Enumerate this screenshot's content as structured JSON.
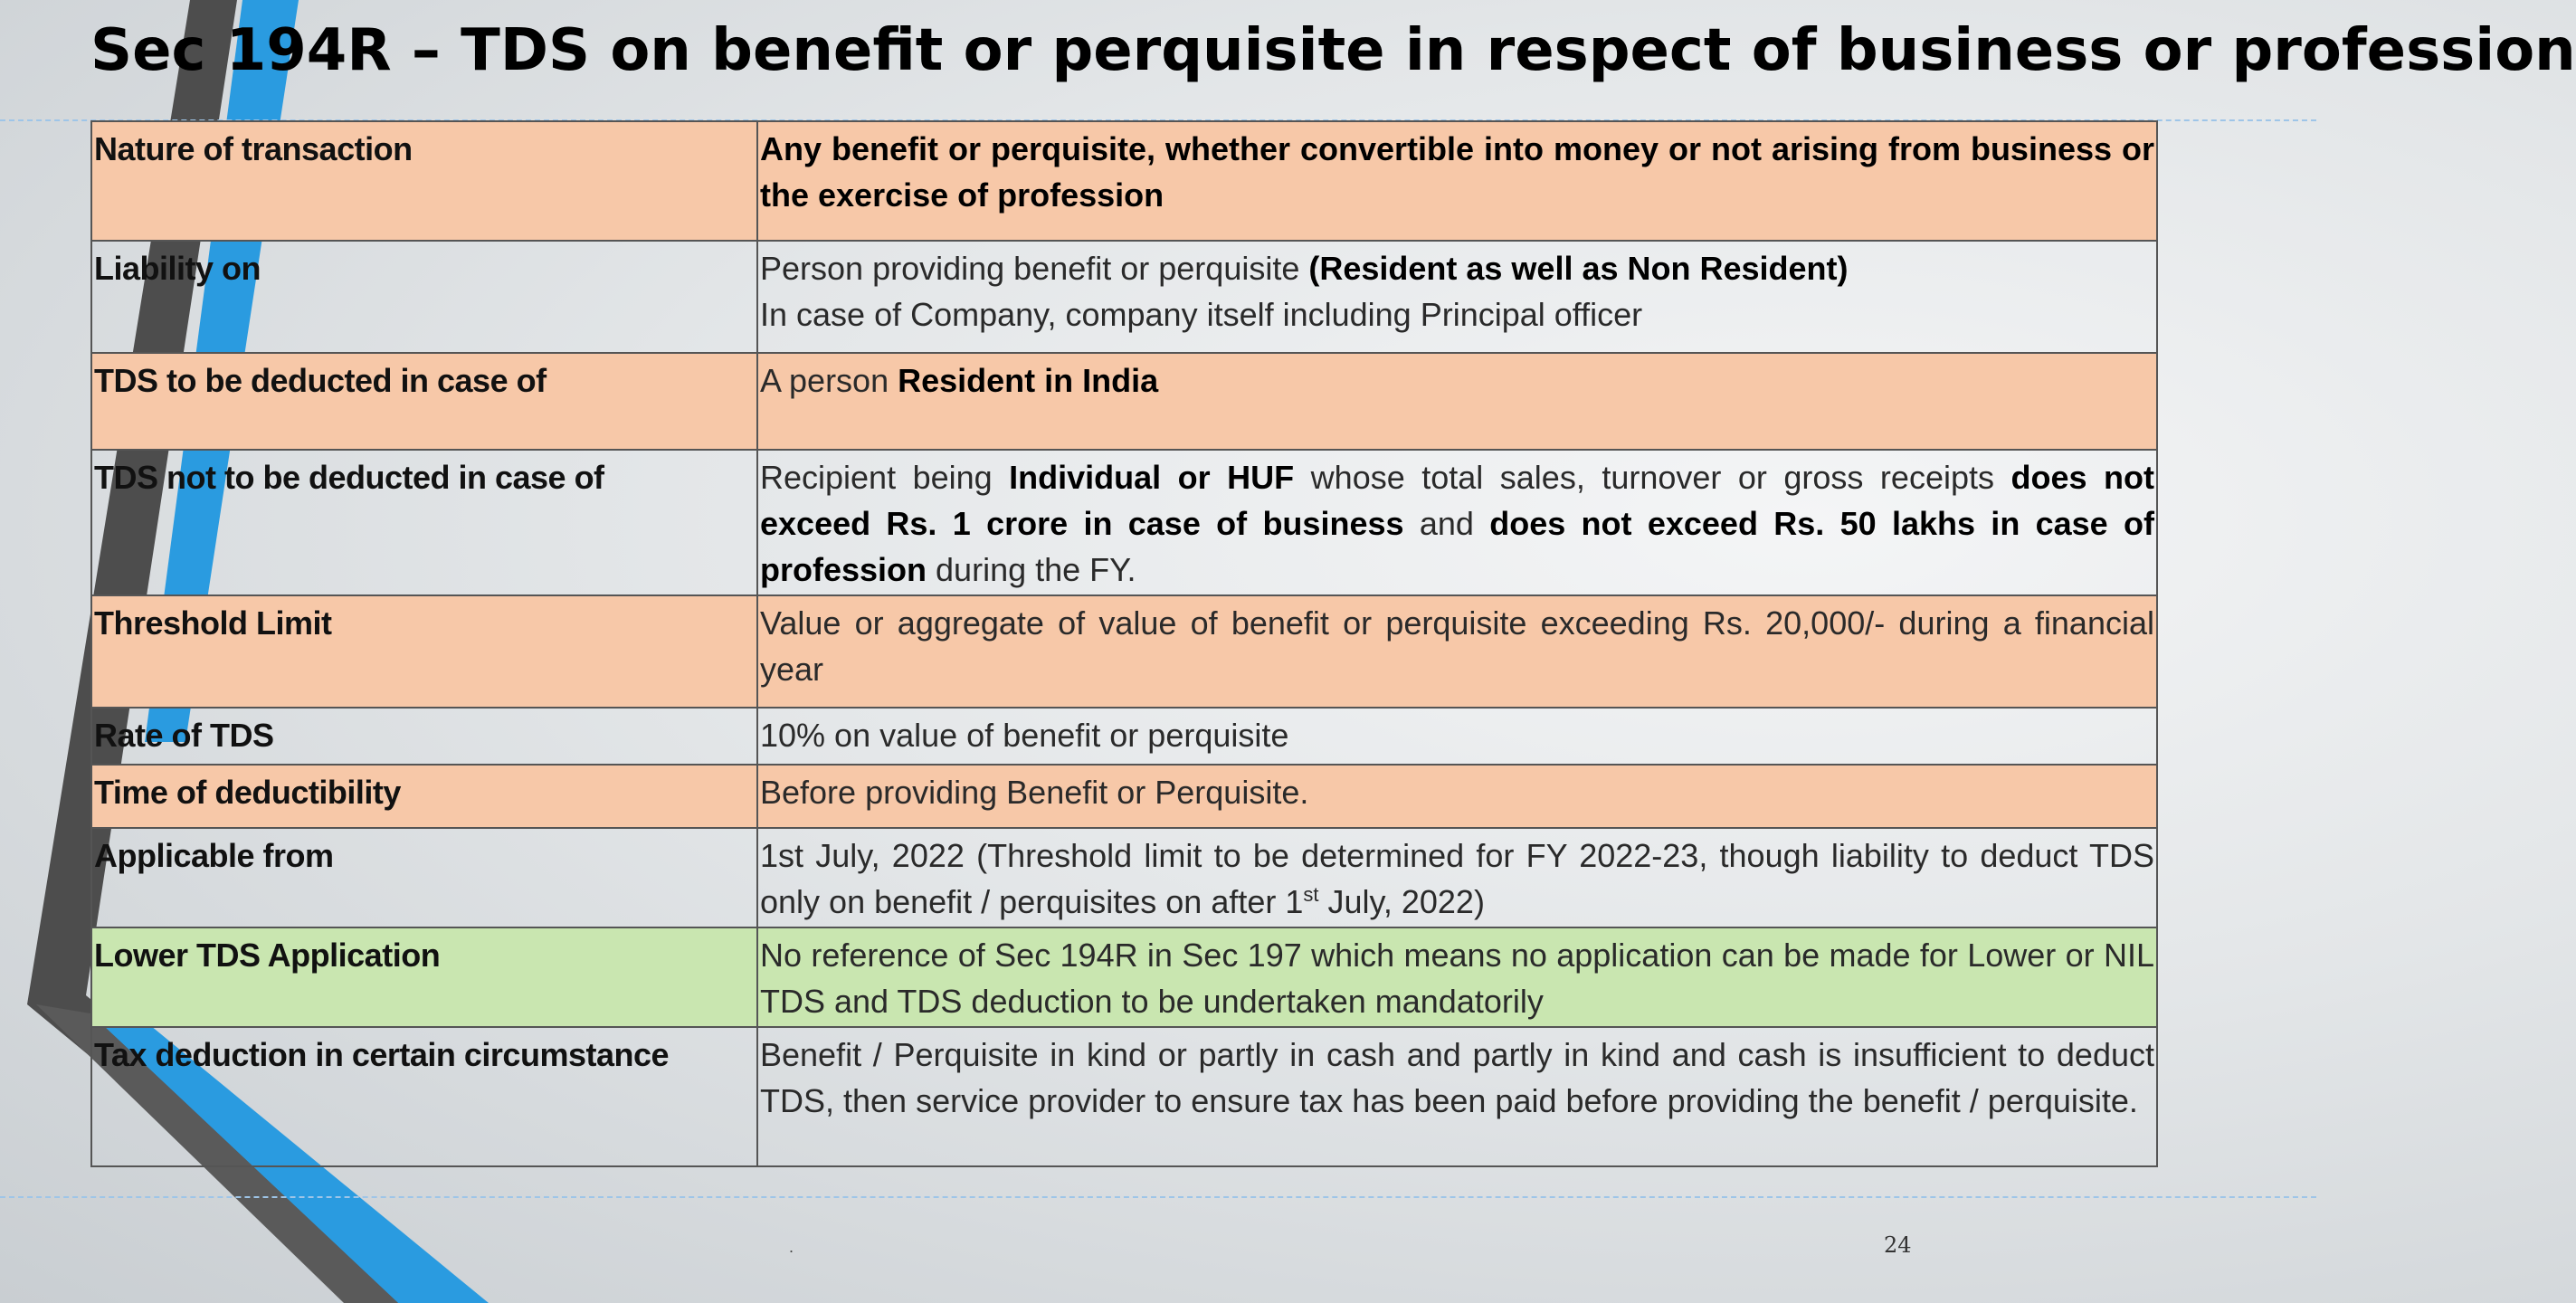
{
  "slide": {
    "title": "Sec 194R – TDS on benefit or perquisite in respect of business or profession",
    "page_number": "24",
    "footer_dot": "."
  },
  "rows": [
    {
      "label": "Nature of transaction",
      "value": [
        "Any benefit or perquisite, whether convertible into money or not arising from business or the exercise of profession"
      ]
    },
    {
      "label": "Liability on",
      "line1": [
        "Person providing benefit or perquisite ",
        "(Resident as well as Non Resident)"
      ],
      "line2": "In case of Company, company itself including Principal officer"
    },
    {
      "label": "TDS to be deducted in case of",
      "value": [
        "A person ",
        "Resident in India"
      ]
    },
    {
      "label": "TDS not to be deducted in case of",
      "value": [
        "Recipient being ",
        "Individual or HUF",
        " whose total sales, turnover or gross receipts ",
        "does not exceed Rs. 1 crore in case of business",
        " and ",
        "does not exceed Rs. 50 lakhs in case of profession",
        " during the FY."
      ]
    },
    {
      "label": "Threshold Limit",
      "value": [
        "Value or aggregate of value of benefit or perquisite exceeding Rs. 20,000/- during a financial year"
      ]
    },
    {
      "label": "Rate of TDS",
      "value": [
        "10% on value of benefit or perquisite"
      ]
    },
    {
      "label": "Time of deductibility",
      "value": [
        "Before providing Benefit or Perquisite."
      ]
    },
    {
      "label": "Applicable from",
      "value": [
        "1st July, 2022 (Threshold limit to be determined for FY 2022-23, though liability to deduct TDS only on benefit / perquisites on after 1",
        "st",
        " July, 2022)"
      ]
    },
    {
      "label": "Lower TDS Application",
      "value": [
        "No reference of Sec 194R in Sec 197 which means no application can be made for Lower or NIL TDS and TDS deduction to be undertaken mandatorily"
      ]
    },
    {
      "label": "Tax deduction in certain circumstance",
      "value": [
        "Benefit / Perquisite in kind or partly in cash and partly in kind and cash is insufficient to deduct TDS, then service provider to ensure tax has been paid before providing the benefit / perquisite."
      ]
    }
  ],
  "colors": {
    "peach_row": "#f7c8a8",
    "green_row": "#c9e6b0",
    "accent_blue": "#2a9be0",
    "accent_dark": "#4a4a4a"
  }
}
